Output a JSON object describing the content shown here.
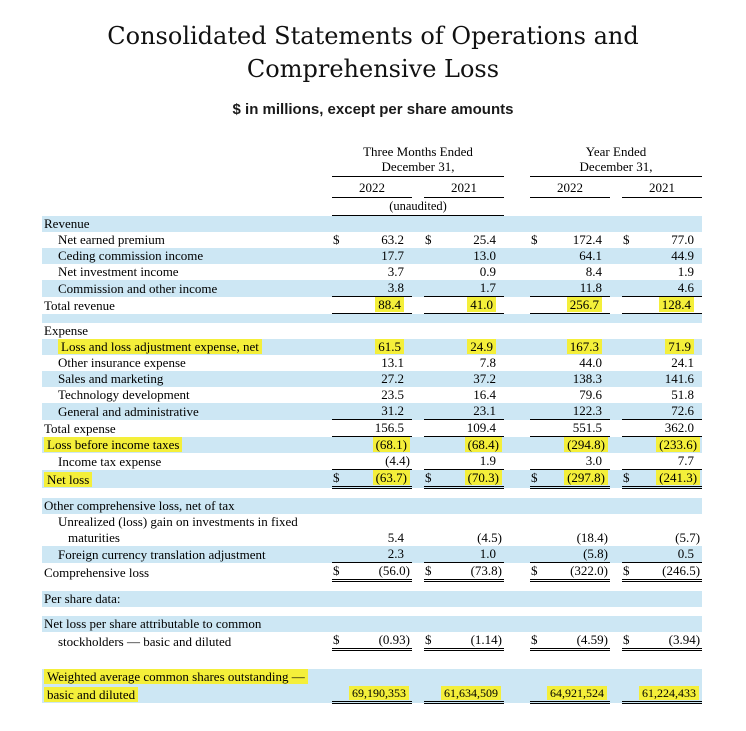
{
  "title": {
    "line1": "Consolidated Statements of Operations and",
    "line2": "Comprehensive Loss"
  },
  "subtitle": "$ in millions, except per share amounts",
  "dollar_sign": "$",
  "colors": {
    "row_blue": "#cde7f4",
    "highlight_yellow": "#f4ef3a"
  },
  "columns": {
    "group1_line1": "Three Months Ended",
    "group1_line2": "December 31,",
    "group2_line1": "Year Ended",
    "group2_line2": "December 31,",
    "years": [
      "2022",
      "2021",
      "2022",
      "2021"
    ],
    "unaudited": "(unaudited)"
  },
  "rows": [
    {
      "label": "Revenue",
      "bg": "blue",
      "values": null
    },
    {
      "label": "Net earned premium",
      "indent": 1,
      "bg": "white",
      "dollar": true,
      "values": [
        "63.2",
        "25.4",
        "172.4",
        "77.0"
      ]
    },
    {
      "label": "Ceding commission income",
      "indent": 1,
      "bg": "blue",
      "values": [
        "17.7",
        "13.0",
        "64.1",
        "44.9"
      ]
    },
    {
      "label": "Net investment income",
      "indent": 1,
      "bg": "white",
      "values": [
        "3.7",
        "0.9",
        "8.4",
        "1.9"
      ]
    },
    {
      "label": "Commission and other income",
      "indent": 1,
      "bg": "blue",
      "values": [
        "3.8",
        "1.7",
        "11.8",
        "4.6"
      ]
    },
    {
      "label": "Total revenue",
      "bg": "white",
      "values": [
        "88.4",
        "41.0",
        "256.7",
        "128.4"
      ],
      "hl_values": true,
      "border_top": true,
      "border_bottom": "single"
    },
    {
      "blank": true,
      "bg": "blue"
    },
    {
      "label": "Expense",
      "bg": "white",
      "values": null
    },
    {
      "label": "Loss and loss adjustment expense, net",
      "indent": 1,
      "bg": "blue",
      "values": [
        "61.5",
        "24.9",
        "167.3",
        "71.9"
      ],
      "hl_label": true,
      "hl_values": true
    },
    {
      "label": "Other insurance expense",
      "indent": 1,
      "bg": "white",
      "values": [
        "13.1",
        "7.8",
        "44.0",
        "24.1"
      ]
    },
    {
      "label": "Sales and marketing",
      "indent": 1,
      "bg": "blue",
      "values": [
        "27.2",
        "37.2",
        "138.3",
        "141.6"
      ]
    },
    {
      "label": "Technology development",
      "indent": 1,
      "bg": "white",
      "values": [
        "23.5",
        "16.4",
        "79.6",
        "51.8"
      ]
    },
    {
      "label": "General and administrative",
      "indent": 1,
      "bg": "blue",
      "values": [
        "31.2",
        "23.1",
        "122.3",
        "72.6"
      ]
    },
    {
      "label": "Total expense",
      "bg": "white",
      "values": [
        "156.5",
        "109.4",
        "551.5",
        "362.0"
      ],
      "border_top": true
    },
    {
      "label": "Loss before income taxes",
      "bg": "blue",
      "values": [
        "(68.1)",
        "(68.4)",
        "(294.8)",
        "(233.6)"
      ],
      "hl_label": true,
      "hl_values": true,
      "border_top": true
    },
    {
      "label": "Income tax expense",
      "indent": 1,
      "bg": "white",
      "values": [
        "(4.4)",
        "1.9",
        "3.0",
        "7.7"
      ]
    },
    {
      "label": "Net loss",
      "bg": "blue",
      "dollar": true,
      "values": [
        "(63.7)",
        "(70.3)",
        "(297.8)",
        "(241.3)"
      ],
      "hl_label": true,
      "hl_values": true,
      "border_top": true,
      "border_bottom": "double"
    },
    {
      "blank": true,
      "bg": "white"
    },
    {
      "label": "Other comprehensive loss, net of tax",
      "bg": "blue",
      "values": null
    },
    {
      "label": "Unrealized (loss) gain on investments in fixed",
      "indent": 1,
      "bg": "white",
      "values": null
    },
    {
      "label": "maturities",
      "indent": 2,
      "bg": "white",
      "values": [
        "5.4",
        "(4.5)",
        "(18.4)",
        "(5.7)"
      ]
    },
    {
      "label": "Foreign currency translation adjustment",
      "indent": 1,
      "bg": "blue",
      "values": [
        "2.3",
        "1.0",
        "(5.8)",
        "0.5"
      ]
    },
    {
      "label": "Comprehensive loss",
      "bg": "white",
      "dollar": true,
      "values": [
        "(56.0)",
        "(73.8)",
        "(322.0)",
        "(246.5)"
      ],
      "border_top": true,
      "border_bottom": "double"
    },
    {
      "blank": true,
      "bg": "white"
    },
    {
      "label": "Per share data:",
      "bg": "blue",
      "values": null
    },
    {
      "blank": true,
      "bg": "white"
    },
    {
      "label": "Net loss per share attributable to common",
      "bg": "blue",
      "values": null
    },
    {
      "label": "stockholders — basic and diluted",
      "indent": 1,
      "bg": "white",
      "dollar": true,
      "values": [
        "(0.93)",
        "(1.14)",
        "(4.59)",
        "(3.94)"
      ],
      "border_bottom": "double"
    },
    {
      "blank": true,
      "tall": true,
      "bg": "white"
    },
    {
      "label": "Weighted average common shares outstanding —",
      "bg": "blue",
      "hl_label": true,
      "values": null
    },
    {
      "label": "basic and diluted",
      "bg": "blue",
      "hl_label": true,
      "values": [
        "69,190,353",
        "61,634,509",
        "64,921,524",
        "61,224,433"
      ],
      "hl_values": true,
      "border_bottom": "double"
    }
  ]
}
